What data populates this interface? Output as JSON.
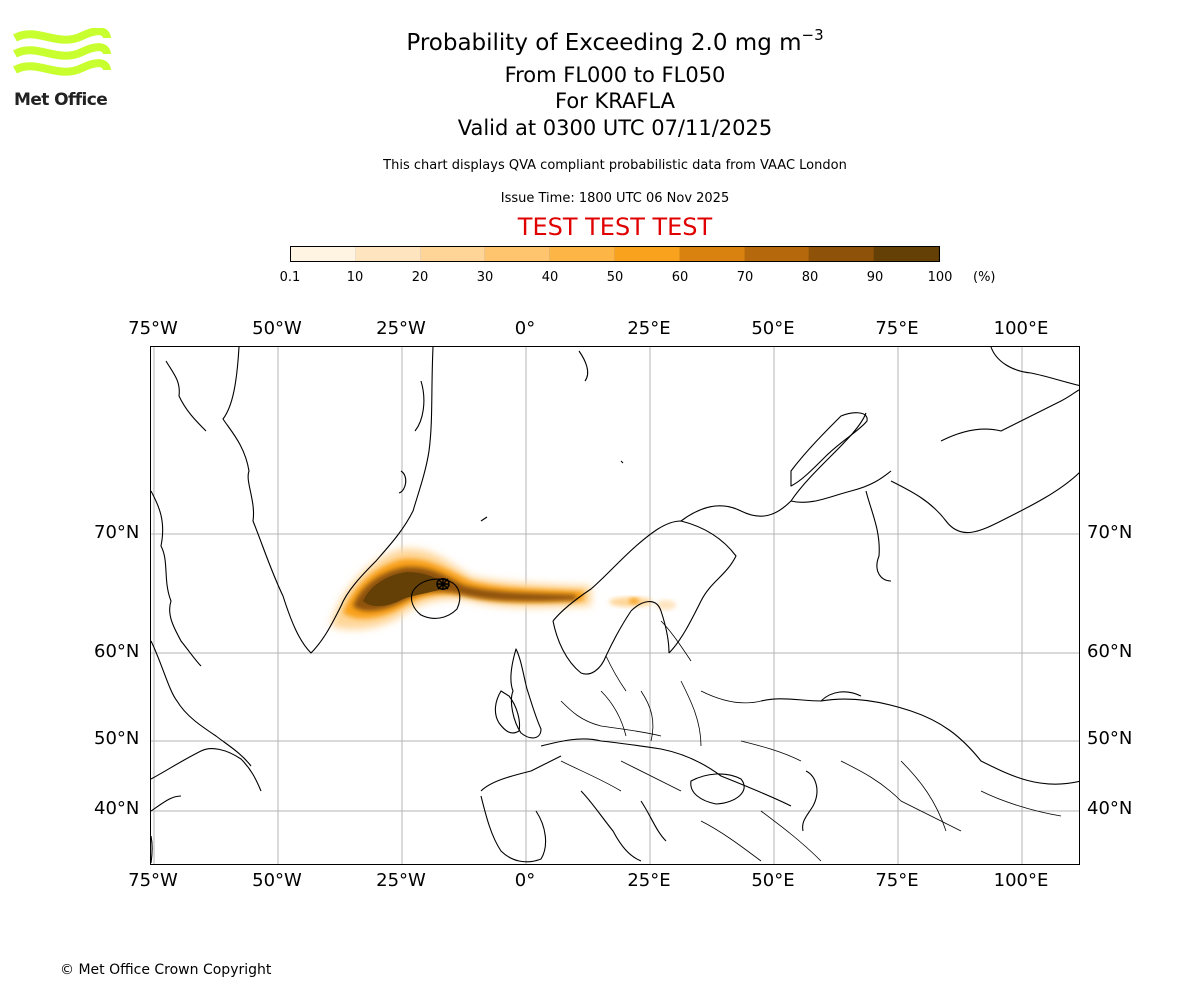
{
  "logo": {
    "text": "Met Office",
    "color": "#c8ff2e"
  },
  "title": {
    "line1_prefix": "Probability of Exceeding 2.0 mg m",
    "line1_exp": "−3",
    "line2": "From FL000 to FL050",
    "line3": "For KRAFLA",
    "line4": "Valid at 0300 UTC 07/11/2025",
    "description": "This chart displays QVA compliant probabilistic data from VAAC London",
    "issue_time": "Issue Time: 1800 UTC 06 Nov 2025",
    "test_banner": "TEST TEST TEST",
    "test_color": "#e00000"
  },
  "colorbar": {
    "ticks": [
      "0.1",
      "10",
      "20",
      "30",
      "40",
      "50",
      "60",
      "70",
      "80",
      "90",
      "100"
    ],
    "unit": "(%)",
    "colors": [
      "#fff4e2",
      "#fee4bf",
      "#fed597",
      "#fec46e",
      "#fdb546",
      "#f9a21d",
      "#d98210",
      "#b6690c",
      "#8e5208",
      "#644007"
    ]
  },
  "map": {
    "lon_labels": [
      "75°W",
      "50°W",
      "25°W",
      "0°",
      "25°E",
      "50°E",
      "75°E",
      "100°E"
    ],
    "lat_labels": [
      "70°N",
      "60°N",
      "50°N",
      "40°N"
    ],
    "volcano": "KRAFLA"
  },
  "footer": {
    "copyright": "© Met Office Crown Copyright"
  }
}
